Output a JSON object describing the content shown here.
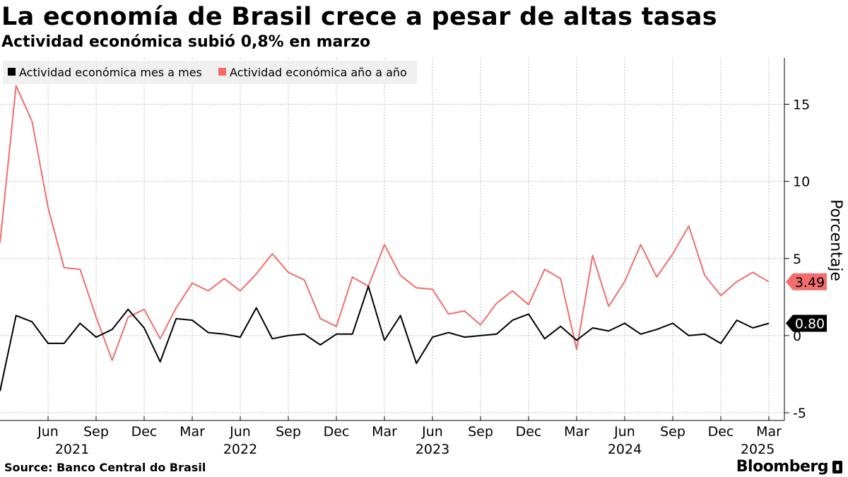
{
  "header": {
    "title": "La economía de Brasil crece a pesar de altas tasas",
    "subtitle": "Actividad económica subió 0,8% en marzo"
  },
  "footer": {
    "source": "Source:  Banco Central do Brasil",
    "brand": "Bloomberg"
  },
  "colors": {
    "mom": "#000000",
    "yoy": "#f36d6d",
    "grid": "#bfbfbf",
    "legend_bg": "#f0f0f0"
  },
  "chart_data": {
    "type": "line",
    "title": "La economía de Brasil crece a pesar de altas tasas",
    "subtitle": "Actividad económica subió 0,8% en marzo",
    "ylabel": "Porcentaje",
    "ylim": [
      -5.5,
      18
    ],
    "yticks": [
      -5,
      0,
      5,
      10,
      15
    ],
    "ytick_labels": [
      "-5",
      "0",
      "5",
      "10",
      "15"
    ],
    "x_month_labels": [
      {
        "label": "Jun",
        "index": 3
      },
      {
        "label": "Sep",
        "index": 6
      },
      {
        "label": "Dec",
        "index": 9
      },
      {
        "label": "Mar",
        "index": 12
      },
      {
        "label": "Jun",
        "index": 15
      },
      {
        "label": "Sep",
        "index": 18
      },
      {
        "label": "Dec",
        "index": 21
      },
      {
        "label": "Mar",
        "index": 24
      },
      {
        "label": "Jun",
        "index": 27
      },
      {
        "label": "Sep",
        "index": 30
      },
      {
        "label": "Dec",
        "index": 33
      },
      {
        "label": "Mar",
        "index": 36
      },
      {
        "label": "Jun",
        "index": 39
      },
      {
        "label": "Sep",
        "index": 42
      },
      {
        "label": "Dec",
        "index": 45
      },
      {
        "label": "Mar",
        "index": 48
      }
    ],
    "x_year_labels": [
      {
        "label": "2021",
        "index": 4.5
      },
      {
        "label": "2022",
        "index": 15
      },
      {
        "label": "2023",
        "index": 27
      },
      {
        "label": "2024",
        "index": 39
      },
      {
        "label": "2025",
        "index": 47.3
      }
    ],
    "grid": true,
    "legend_position": "top-left",
    "series": [
      {
        "name": "Actividad económica mes a mes",
        "color": "#000000",
        "end_label": "0.80",
        "values": [
          -3.6,
          1.3,
          0.9,
          -0.5,
          -0.5,
          0.8,
          -0.1,
          0.4,
          1.7,
          0.5,
          -1.7,
          1.1,
          1.0,
          0.2,
          0.1,
          -0.1,
          1.8,
          -0.2,
          0.0,
          0.1,
          -0.6,
          0.1,
          0.1,
          3.2,
          -0.3,
          1.3,
          -1.8,
          -0.1,
          0.2,
          -0.1,
          0.0,
          0.1,
          1.0,
          1.4,
          -0.2,
          0.6,
          -0.3,
          0.5,
          0.3,
          0.8,
          0.1,
          0.4,
          0.8,
          0.0,
          0.1,
          -0.5,
          1.0,
          0.5,
          0.8
        ]
      },
      {
        "name": "Actividad económica año a año",
        "color": "#f36d6d",
        "end_label": "3.49",
        "values": [
          6.0,
          16.2,
          13.9,
          8.3,
          4.4,
          4.3,
          1.2,
          -1.6,
          1.2,
          1.7,
          -0.2,
          1.8,
          3.4,
          2.9,
          3.7,
          2.9,
          4.0,
          5.3,
          4.1,
          3.6,
          1.1,
          0.6,
          3.8,
          3.2,
          5.9,
          3.9,
          3.1,
          3.0,
          1.4,
          1.6,
          0.7,
          2.1,
          2.9,
          2.0,
          4.3,
          3.7,
          -0.9,
          5.2,
          1.9,
          3.5,
          5.9,
          3.8,
          5.3,
          7.1,
          3.9,
          2.6,
          3.5,
          4.1,
          3.49
        ]
      }
    ]
  }
}
